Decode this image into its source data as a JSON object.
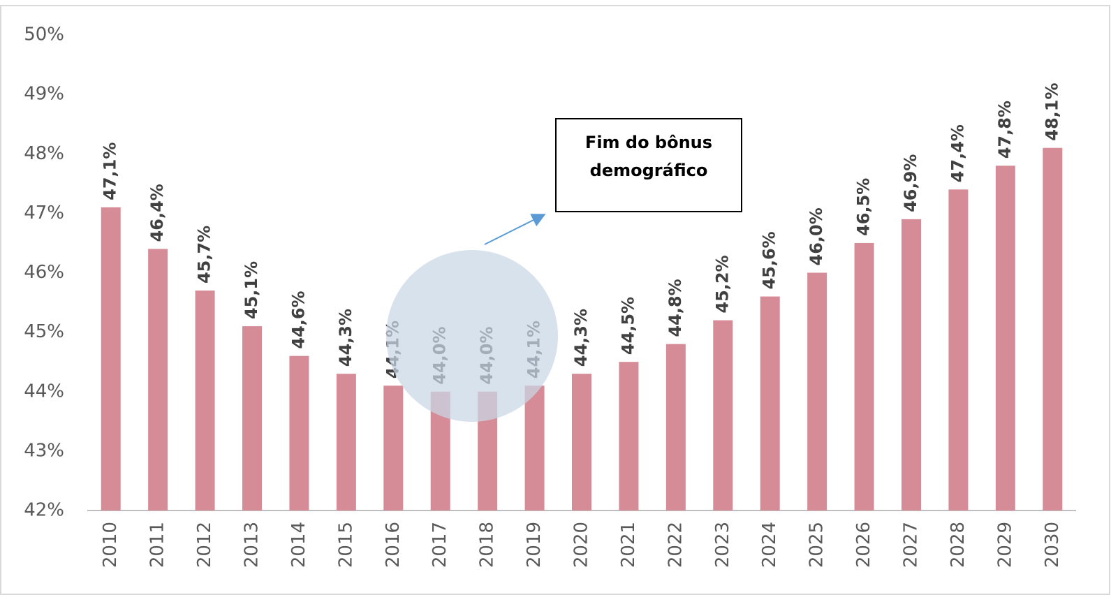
{
  "chart_data": {
    "type": "bar",
    "categories": [
      "2010",
      "2011",
      "2012",
      "2013",
      "2014",
      "2015",
      "2016",
      "2017",
      "2018",
      "2019",
      "2020",
      "2021",
      "2022",
      "2023",
      "2024",
      "2025",
      "2026",
      "2027",
      "2028",
      "2029",
      "2030"
    ],
    "values": [
      47.1,
      46.4,
      45.7,
      45.1,
      44.6,
      44.3,
      44.1,
      44.0,
      44.0,
      44.1,
      44.3,
      44.5,
      44.8,
      45.2,
      45.6,
      46.0,
      46.5,
      46.9,
      47.4,
      47.8,
      48.1
    ],
    "value_labels": [
      "47,1%",
      "46,4%",
      "45,7%",
      "45,1%",
      "44,6%",
      "44,3%",
      "44,1%",
      "44,0%",
      "44,0%",
      "44,1%",
      "44,3%",
      "44,5%",
      "44,8%",
      "45,2%",
      "45,6%",
      "46,0%",
      "46,5%",
      "46,9%",
      "47,4%",
      "47,8%",
      "48,1%"
    ],
    "color": "#d68c96",
    "ylim": [
      42,
      50
    ],
    "yticks": [
      {
        "value": 42,
        "label": "42%"
      },
      {
        "value": 43,
        "label": "43%"
      },
      {
        "value": 44,
        "label": "44%"
      },
      {
        "value": 45,
        "label": "45%"
      },
      {
        "value": 46,
        "label": "46%"
      },
      {
        "value": 47,
        "label": "47%"
      },
      {
        "value": 48,
        "label": "48%"
      },
      {
        "value": 49,
        "label": "49%"
      },
      {
        "value": 50,
        "label": "50%"
      }
    ],
    "grid": false,
    "annotation": [
      "Fim do bônus",
      "demográfico"
    ]
  }
}
